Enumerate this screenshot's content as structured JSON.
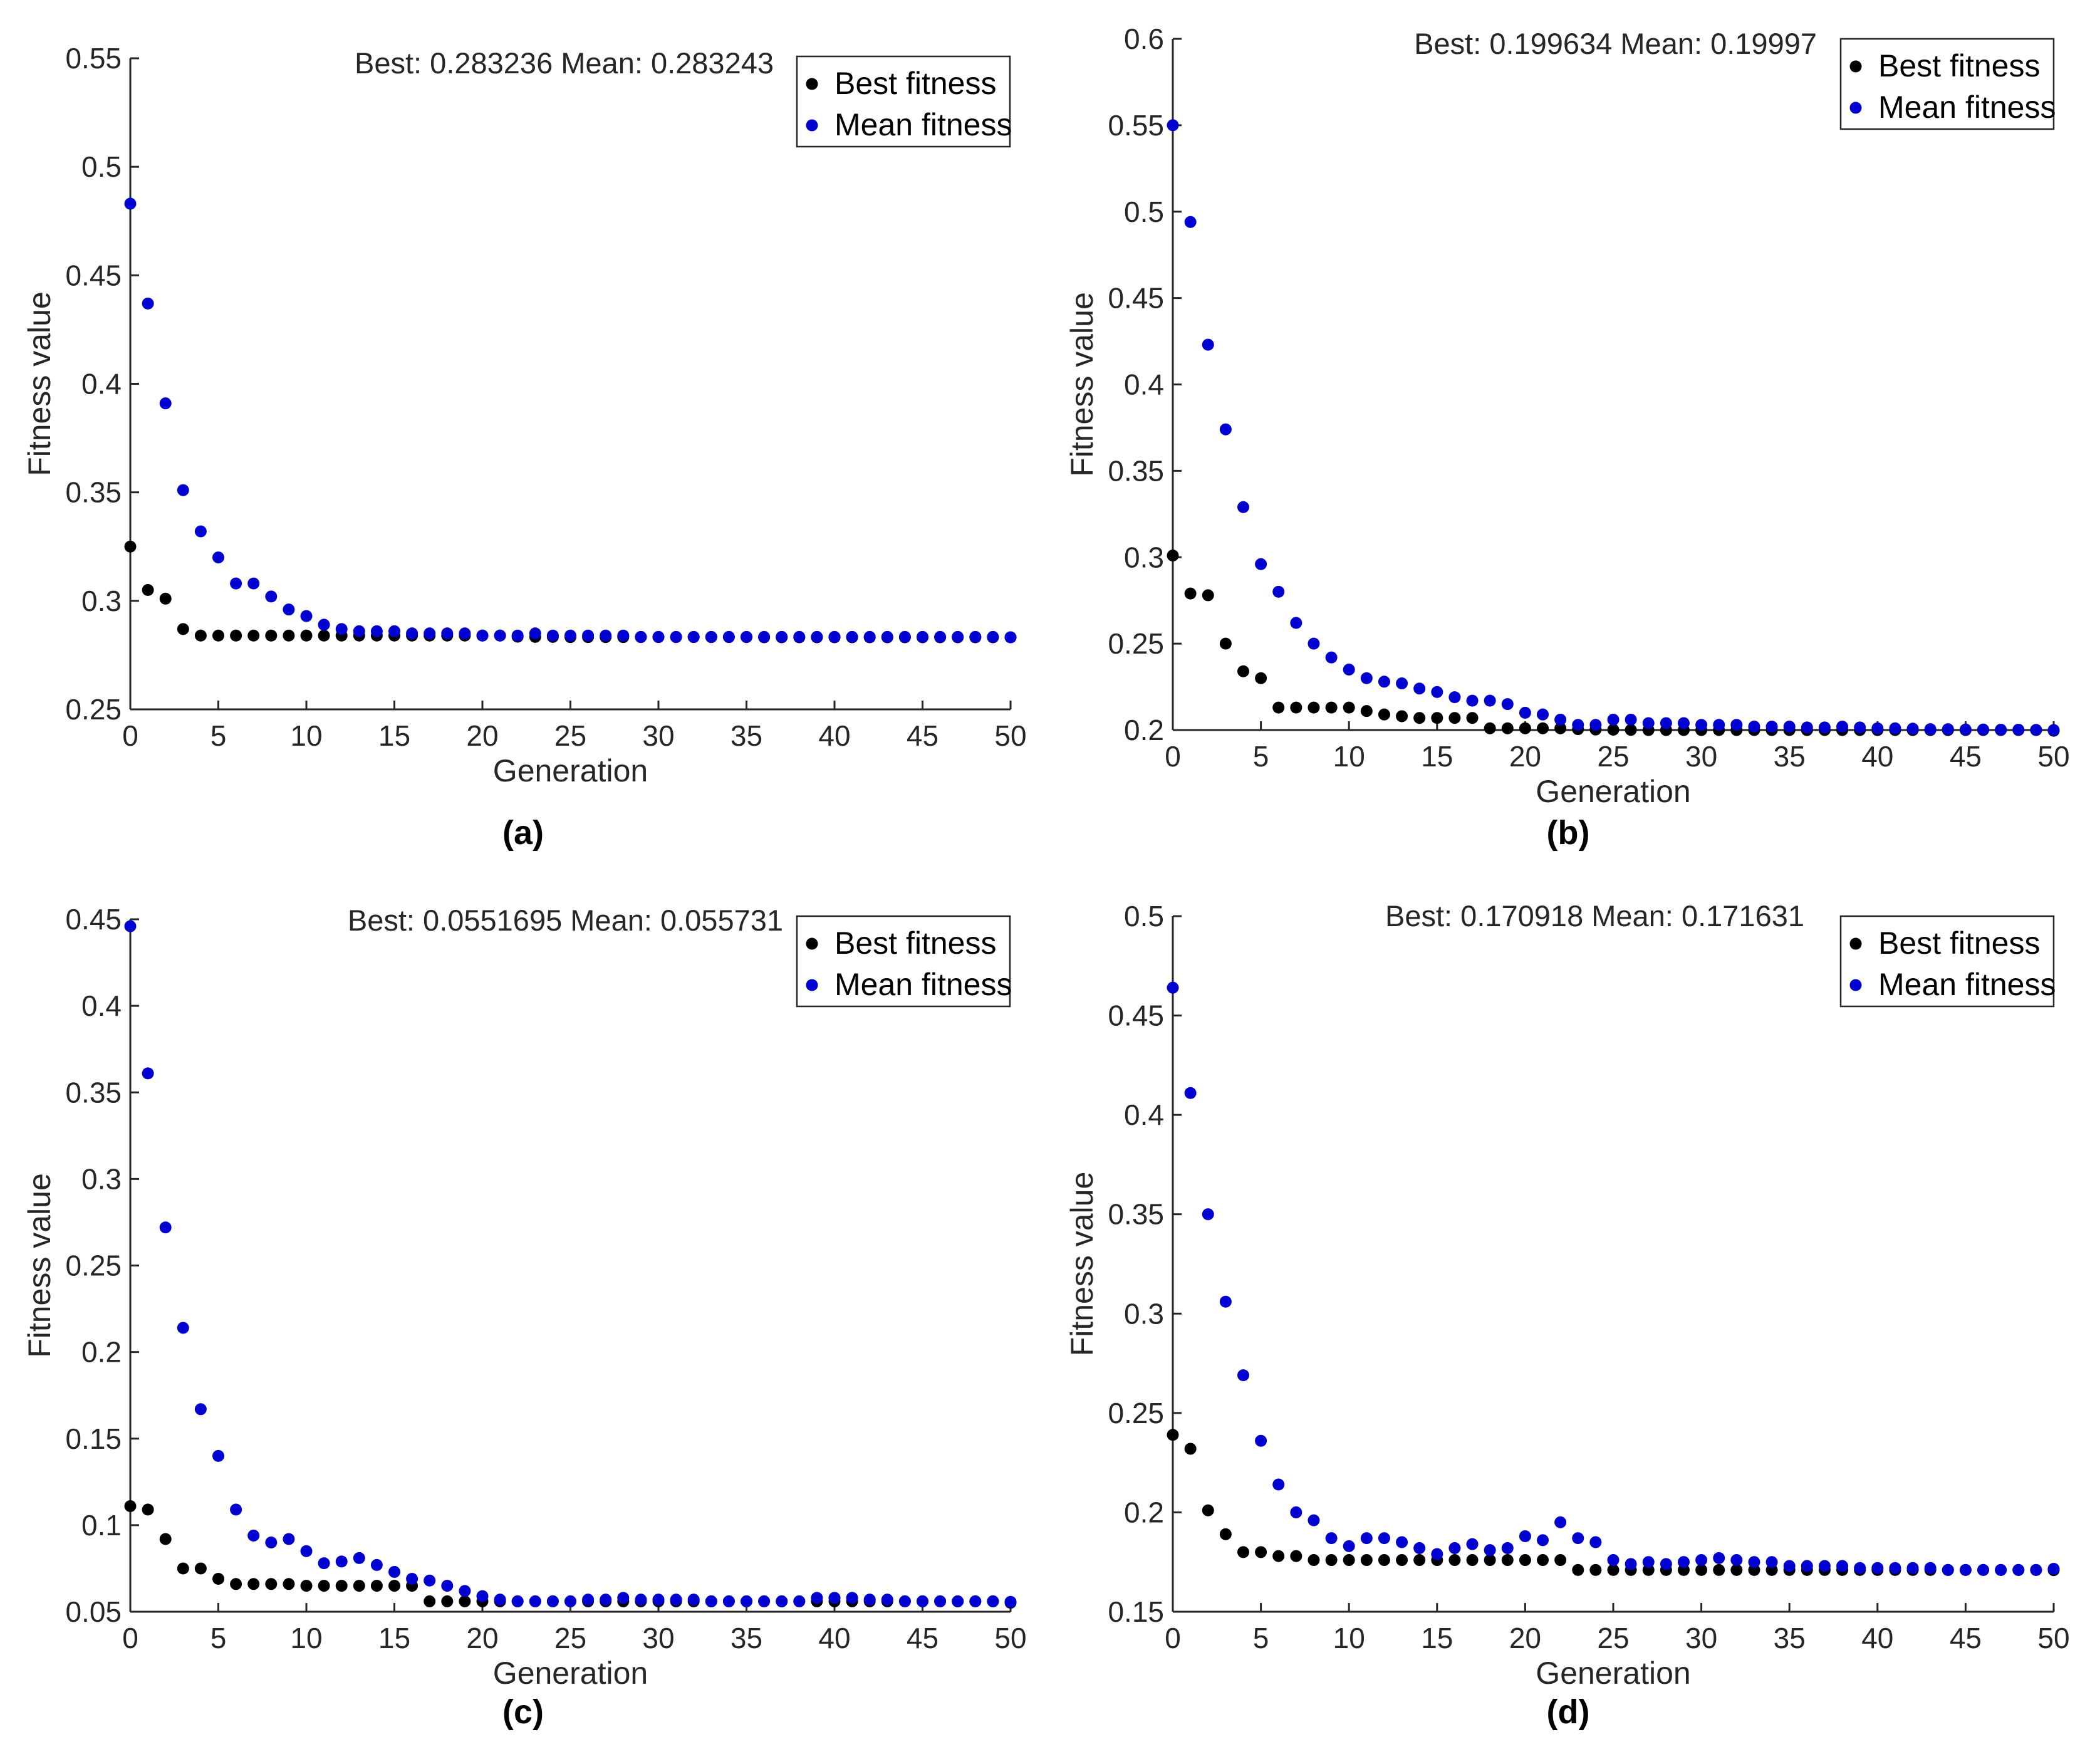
{
  "legend": {
    "best_label": "Best fitness",
    "mean_label": "Mean fitness"
  },
  "colors": {
    "best": "#000000",
    "mean": "#0000d0",
    "axis": "#262626"
  },
  "chart_data": [
    {
      "id": "a",
      "type": "scatter",
      "panel_label": "(a)",
      "stats_text": "Best: 0.283236 Mean: 0.283243",
      "xlabel": "Generation",
      "ylabel": "Fitness value",
      "xlim": [
        0,
        50
      ],
      "ylim": [
        0.25,
        0.55
      ],
      "xticks": [
        0,
        5,
        10,
        15,
        20,
        25,
        30,
        35,
        40,
        45,
        50
      ],
      "xtick_labels": [
        "0",
        "5",
        "10",
        "15",
        "20",
        "25",
        "30",
        "35",
        "40",
        "45",
        "50"
      ],
      "yticks": [
        0.25,
        0.3,
        0.35,
        0.4,
        0.45,
        0.5,
        0.55
      ],
      "ytick_labels": [
        "0.25",
        "0.3",
        "0.35",
        "0.4",
        "0.45",
        "0.5",
        "0.55"
      ],
      "legend_position": "top-right",
      "series": [
        {
          "name": "Best fitness",
          "values": [
            0.325,
            0.305,
            0.301,
            0.287,
            0.284,
            0.284,
            0.284,
            0.284,
            0.284,
            0.284,
            0.284,
            0.284,
            0.284,
            0.284,
            0.284,
            0.284,
            0.284,
            0.284,
            0.284,
            0.284,
            0.284,
            0.284,
            0.2835,
            0.2834,
            0.2834,
            0.2833,
            0.2833,
            0.2833,
            0.2833,
            0.2833,
            0.2833,
            0.2833,
            0.2833,
            0.2833,
            0.2833,
            0.2833,
            0.2832,
            0.2832,
            0.2832,
            0.2832,
            0.2832,
            0.2832,
            0.2832,
            0.2832,
            0.2832,
            0.2832,
            0.2832,
            0.2832,
            0.2832,
            0.2832,
            0.2832
          ]
        },
        {
          "name": "Mean fitness",
          "values": [
            0.483,
            0.437,
            0.391,
            0.351,
            0.332,
            0.32,
            0.308,
            0.308,
            0.302,
            0.296,
            0.293,
            0.289,
            0.287,
            0.286,
            0.286,
            0.286,
            0.285,
            0.285,
            0.285,
            0.285,
            0.284,
            0.284,
            0.284,
            0.285,
            0.284,
            0.284,
            0.284,
            0.284,
            0.284,
            0.2834,
            0.2834,
            0.2834,
            0.2834,
            0.2834,
            0.2834,
            0.2834,
            0.2834,
            0.2834,
            0.2834,
            0.2834,
            0.2834,
            0.2834,
            0.2834,
            0.2834,
            0.2834,
            0.2834,
            0.2834,
            0.2834,
            0.2834,
            0.2834,
            0.2832
          ]
        }
      ]
    },
    {
      "id": "b",
      "type": "scatter",
      "panel_label": "(b)",
      "stats_text": "Best: 0.199634 Mean: 0.19997",
      "xlabel": "Generation",
      "ylabel": "Fitness value",
      "xlim": [
        0,
        50
      ],
      "ylim": [
        0.2,
        0.6
      ],
      "xticks": [
        0,
        5,
        10,
        15,
        20,
        25,
        30,
        35,
        40,
        45,
        50
      ],
      "xtick_labels": [
        "0",
        "5",
        "10",
        "15",
        "20",
        "25",
        "30",
        "35",
        "40",
        "45",
        "50"
      ],
      "yticks": [
        0.2,
        0.25,
        0.3,
        0.35,
        0.4,
        0.45,
        0.5,
        0.55,
        0.6
      ],
      "ytick_labels": [
        "0.2",
        "0.25",
        "0.3",
        "0.35",
        "0.4",
        "0.45",
        "0.5",
        "0.55",
        "0.6"
      ],
      "legend_position": "top-right",
      "series": [
        {
          "name": "Best fitness",
          "values": [
            0.301,
            0.279,
            0.278,
            0.25,
            0.234,
            0.23,
            0.213,
            0.213,
            0.213,
            0.213,
            0.213,
            0.211,
            0.209,
            0.208,
            0.207,
            0.207,
            0.207,
            0.207,
            0.201,
            0.201,
            0.201,
            0.201,
            0.201,
            0.2005,
            0.2003,
            0.2002,
            0.2001,
            0.2,
            0.2,
            0.2,
            0.2,
            0.2,
            0.2,
            0.2,
            0.2,
            0.2,
            0.2,
            0.2,
            0.2,
            0.2,
            0.2,
            0.2,
            0.2,
            0.2,
            0.2,
            0.2,
            0.2,
            0.2,
            0.2,
            0.2,
            0.1996
          ]
        },
        {
          "name": "Mean fitness",
          "values": [
            0.55,
            0.494,
            0.423,
            0.374,
            0.329,
            0.296,
            0.28,
            0.262,
            0.25,
            0.242,
            0.235,
            0.23,
            0.228,
            0.227,
            0.224,
            0.222,
            0.219,
            0.217,
            0.217,
            0.215,
            0.21,
            0.209,
            0.206,
            0.203,
            0.203,
            0.206,
            0.206,
            0.204,
            0.204,
            0.204,
            0.203,
            0.203,
            0.203,
            0.202,
            0.202,
            0.202,
            0.2015,
            0.2015,
            0.202,
            0.2015,
            0.201,
            0.201,
            0.2008,
            0.2005,
            0.2005,
            0.2003,
            0.2003,
            0.2002,
            0.2002,
            0.2001,
            0.2
          ]
        }
      ]
    },
    {
      "id": "c",
      "type": "scatter",
      "panel_label": "(c)",
      "stats_text": "Best: 0.0551695 Mean: 0.055731",
      "xlabel": "Generation",
      "ylabel": "Fitness value",
      "xlim": [
        0,
        50
      ],
      "ylim": [
        0.05,
        0.45
      ],
      "xticks": [
        0,
        5,
        10,
        15,
        20,
        25,
        30,
        35,
        40,
        45,
        50
      ],
      "xtick_labels": [
        "0",
        "5",
        "10",
        "15",
        "20",
        "25",
        "30",
        "35",
        "40",
        "45",
        "50"
      ],
      "yticks": [
        0.05,
        0.1,
        0.15,
        0.2,
        0.25,
        0.3,
        0.35,
        0.4,
        0.45
      ],
      "ytick_labels": [
        "0.05",
        "0.1",
        "0.15",
        "0.2",
        "0.25",
        "0.3",
        "0.35",
        "0.4",
        "0.45"
      ],
      "legend_position": "top-right",
      "series": [
        {
          "name": "Best fitness",
          "values": [
            0.111,
            0.109,
            0.092,
            0.075,
            0.075,
            0.069,
            0.066,
            0.066,
            0.066,
            0.066,
            0.065,
            0.065,
            0.065,
            0.065,
            0.065,
            0.065,
            0.065,
            0.056,
            0.056,
            0.056,
            0.056,
            0.056,
            0.056,
            0.056,
            0.056,
            0.056,
            0.056,
            0.056,
            0.056,
            0.056,
            0.056,
            0.056,
            0.056,
            0.056,
            0.056,
            0.056,
            0.056,
            0.056,
            0.056,
            0.056,
            0.056,
            0.056,
            0.056,
            0.056,
            0.056,
            0.056,
            0.056,
            0.056,
            0.056,
            0.056,
            0.0552
          ]
        },
        {
          "name": "Mean fitness",
          "values": [
            0.446,
            0.361,
            0.272,
            0.214,
            0.167,
            0.14,
            0.109,
            0.094,
            0.09,
            0.092,
            0.085,
            0.078,
            0.079,
            0.081,
            0.077,
            0.073,
            0.069,
            0.068,
            0.065,
            0.062,
            0.059,
            0.057,
            0.056,
            0.056,
            0.056,
            0.056,
            0.057,
            0.057,
            0.058,
            0.057,
            0.057,
            0.057,
            0.057,
            0.056,
            0.056,
            0.056,
            0.056,
            0.056,
            0.056,
            0.058,
            0.058,
            0.058,
            0.057,
            0.057,
            0.056,
            0.056,
            0.056,
            0.056,
            0.056,
            0.056,
            0.0557
          ]
        }
      ]
    },
    {
      "id": "d",
      "type": "scatter",
      "panel_label": "(d)",
      "stats_text": "Best: 0.170918 Mean: 0.171631",
      "xlabel": "Generation",
      "ylabel": "Fitness value",
      "xlim": [
        0,
        50
      ],
      "ylim": [
        0.15,
        0.5
      ],
      "xticks": [
        0,
        5,
        10,
        15,
        20,
        25,
        30,
        35,
        40,
        45,
        50
      ],
      "xtick_labels": [
        "0",
        "5",
        "10",
        "15",
        "20",
        "25",
        "30",
        "35",
        "40",
        "45",
        "50"
      ],
      "yticks": [
        0.15,
        0.2,
        0.25,
        0.3,
        0.35,
        0.4,
        0.45,
        0.5
      ],
      "ytick_labels": [
        "0.15",
        "0.2",
        "0.25",
        "0.3",
        "0.35",
        "0.4",
        "0.45",
        "0.5"
      ],
      "legend_position": "top-right",
      "series": [
        {
          "name": "Best fitness",
          "values": [
            0.239,
            0.232,
            0.201,
            0.189,
            0.18,
            0.18,
            0.178,
            0.178,
            0.176,
            0.176,
            0.176,
            0.176,
            0.176,
            0.176,
            0.176,
            0.176,
            0.176,
            0.176,
            0.176,
            0.176,
            0.176,
            0.176,
            0.176,
            0.171,
            0.171,
            0.171,
            0.171,
            0.171,
            0.171,
            0.171,
            0.171,
            0.171,
            0.171,
            0.171,
            0.171,
            0.171,
            0.171,
            0.171,
            0.171,
            0.171,
            0.171,
            0.171,
            0.171,
            0.171,
            0.171,
            0.171,
            0.171,
            0.171,
            0.171,
            0.171,
            0.1709
          ]
        },
        {
          "name": "Mean fitness",
          "values": [
            0.464,
            0.411,
            0.35,
            0.306,
            0.269,
            0.236,
            0.214,
            0.2,
            0.196,
            0.187,
            0.183,
            0.187,
            0.187,
            0.185,
            0.182,
            0.179,
            0.182,
            0.184,
            0.181,
            0.182,
            0.188,
            0.186,
            0.195,
            0.187,
            0.185,
            0.176,
            0.174,
            0.175,
            0.174,
            0.175,
            0.176,
            0.177,
            0.176,
            0.175,
            0.175,
            0.173,
            0.173,
            0.173,
            0.173,
            0.172,
            0.172,
            0.172,
            0.172,
            0.172,
            0.171,
            0.171,
            0.171,
            0.171,
            0.171,
            0.171,
            0.1716
          ]
        }
      ]
    }
  ]
}
